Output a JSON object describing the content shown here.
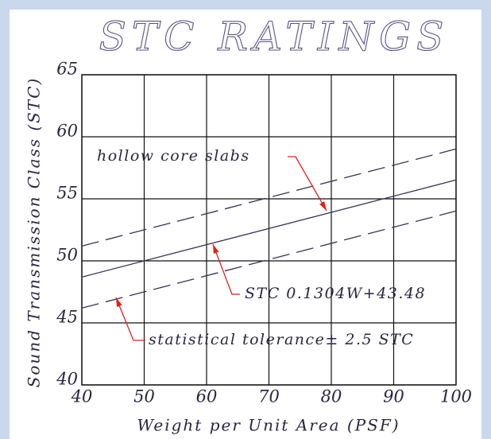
{
  "chart_data": {
    "type": "line",
    "title": "STC RATINGS",
    "xlabel": "Weight per Unit Area (PSF)",
    "ylabel": "Sound Transmission Class (STC)",
    "x": [
      40,
      100
    ],
    "series": [
      {
        "color": "#3b3158",
        "dashed": false,
        "values": [
          48.696,
          56.52
        ]
      },
      {
        "color": "#3b3158",
        "dashed": true,
        "values": [
          51.196,
          59.02
        ]
      },
      {
        "color": "#3b3158",
        "dashed": true,
        "values": [
          46.196,
          54.02
        ]
      }
    ],
    "annotations": [
      "hollow core slabs",
      "STC 0.1304W+43.48",
      "statistical tolerance± 2.5 STC"
    ],
    "annotation_color": "#e0201a",
    "xlim": [
      40,
      100
    ],
    "xticks": [
      40,
      50,
      60,
      70,
      80,
      90,
      100
    ],
    "ylim": [
      40,
      65
    ],
    "yticks": [
      40,
      45,
      50,
      55,
      60,
      65
    ],
    "grid": true
  }
}
